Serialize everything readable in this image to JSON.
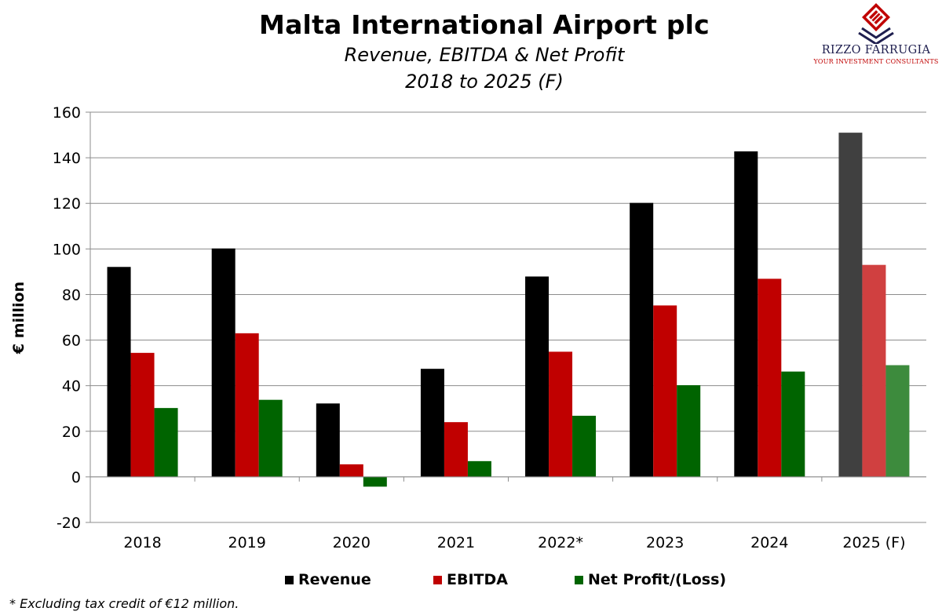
{
  "header": {
    "title": "Malta International Airport plc",
    "subtitle_line1": "Revenue, EBITDA & Net Profit",
    "subtitle_line2": "2018 to 2025 (F)"
  },
  "logo": {
    "name": "RIZZO FARRUGIA",
    "tagline": "YOUR INVESTMENT CONSULTANTS",
    "colors": {
      "navy": "#1f1f4f",
      "red": "#c00000"
    }
  },
  "footnote": "* Excluding tax credit of €12 million.",
  "chart_data": {
    "type": "bar",
    "ylabel": "€ million",
    "ylim": [
      -20,
      160
    ],
    "yticks": [
      -20,
      0,
      20,
      40,
      60,
      80,
      100,
      120,
      140,
      160
    ],
    "grid": true,
    "legend_position": "bottom",
    "categories": [
      "2018",
      "2019",
      "2020",
      "2021",
      "2022*",
      "2023",
      "2024",
      "2025 (F)"
    ],
    "series": [
      {
        "name": "Revenue",
        "color": "#000000",
        "forecast_color": "#404040",
        "values": [
          92.1,
          100.2,
          32.2,
          47.4,
          87.9,
          120.2,
          142.8,
          151.0
        ]
      },
      {
        "name": "EBITDA",
        "color": "#c00000",
        "forecast_color": "#d04040",
        "values": [
          54.4,
          63.0,
          5.5,
          24.0,
          54.9,
          75.2,
          86.9,
          93.0
        ]
      },
      {
        "name": "Net Profit/(Loss)",
        "color": "#006400",
        "forecast_color": "#3d8b3d",
        "values": [
          30.2,
          33.8,
          -4.3,
          6.9,
          26.8,
          40.2,
          46.2,
          49.0
        ]
      }
    ],
    "forecast_category": "2025 (F)"
  }
}
